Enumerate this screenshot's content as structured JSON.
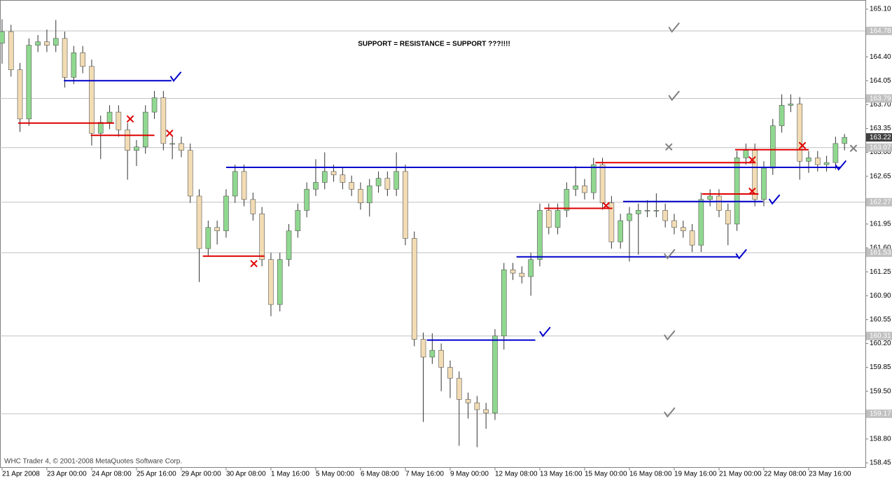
{
  "chart_data": {
    "type": "candlestick",
    "title": "SUPPORT = RESISTANCE = SUPPORT ???!!!!",
    "footer": "WHC Trader 4, © 2001-2008 MetaQuotes Software Corp.",
    "up_color": "#90d890",
    "down_color": "#f2dcb4",
    "open": [
      164.6,
      164.77,
      164.21,
      163.49,
      164.57,
      164.62,
      164.57,
      164.67,
      164.1,
      164.46,
      164.26,
      163.28,
      163.44,
      163.59,
      163.33,
      163.03,
      163.08,
      163.59,
      163.8,
      163.13,
      163.13,
      163.03,
      162.36,
      161.59,
      161.9,
      161.85,
      162.36,
      162.72,
      162.31,
      162.1,
      161.43,
      160.77,
      161.43,
      161.85,
      162.15,
      162.46,
      162.56,
      162.72,
      162.67,
      162.56,
      162.46,
      162.26,
      162.51,
      162.62,
      162.46,
      162.72,
      161.74,
      160.26,
      160.0,
      160.1,
      159.85,
      159.69,
      159.38,
      159.33,
      159.23,
      159.18,
      160.31,
      161.28,
      161.23,
      161.18,
      161.43,
      162.15,
      161.9,
      162.15,
      162.46,
      162.51,
      162.41,
      162.82,
      162.26,
      161.69,
      162.0,
      162.1,
      162.15,
      162.15,
      162.15,
      162.0,
      161.9,
      161.85,
      161.64,
      162.31,
      162.36,
      162.15,
      161.95,
      162.92,
      163.03,
      162.31,
      162.77,
      163.39,
      163.69,
      163.71,
      162.87,
      162.92,
      162.82,
      162.85,
      163.13
    ],
    "high": [
      164.95,
      164.87,
      164.31,
      164.67,
      164.72,
      164.8,
      164.94,
      164.77,
      164.56,
      164.56,
      164.36,
      163.54,
      163.69,
      163.69,
      163.43,
      163.18,
      163.69,
      163.9,
      163.9,
      163.23,
      163.23,
      163.13,
      162.46,
      162.0,
      162.0,
      162.46,
      162.82,
      162.82,
      162.41,
      162.2,
      161.53,
      161.53,
      161.95,
      162.25,
      162.56,
      162.9,
      163.0,
      162.82,
      162.77,
      162.66,
      162.56,
      162.61,
      162.72,
      162.72,
      163.0,
      162.82,
      161.84,
      160.36,
      160.35,
      160.2,
      159.95,
      159.79,
      159.48,
      159.43,
      159.33,
      160.41,
      161.38,
      161.38,
      161.33,
      161.53,
      162.25,
      162.25,
      162.25,
      162.56,
      162.8,
      162.61,
      162.92,
      162.92,
      162.36,
      162.1,
      162.2,
      162.25,
      162.3,
      162.4,
      162.25,
      162.1,
      162.0,
      161.95,
      162.41,
      162.46,
      162.46,
      162.25,
      163.02,
      163.13,
      163.13,
      162.87,
      163.49,
      163.85,
      163.85,
      163.81,
      163.02,
      163.02,
      162.95,
      163.23,
      163.27
    ],
    "low": [
      164.3,
      164.11,
      163.3,
      163.39,
      164.47,
      164.47,
      164.47,
      163.95,
      164.0,
      164.16,
      163.1,
      162.9,
      163.34,
      163.23,
      162.6,
      162.8,
      162.98,
      163.49,
      163.03,
      162.9,
      162.93,
      162.26,
      161.1,
      161.49,
      161.65,
      161.75,
      162.26,
      162.21,
      162.0,
      161.33,
      160.6,
      160.67,
      161.33,
      161.75,
      162.05,
      162.36,
      162.46,
      162.57,
      162.46,
      162.36,
      162.16,
      162.06,
      162.41,
      162.36,
      162.36,
      161.64,
      160.16,
      159.05,
      159.9,
      159.5,
      159.4,
      158.7,
      159.1,
      158.68,
      158.95,
      159.08,
      160.11,
      161.13,
      161.08,
      160.9,
      161.33,
      161.8,
      161.8,
      162.05,
      162.36,
      162.31,
      162.31,
      162.16,
      161.59,
      161.59,
      161.4,
      161.5,
      162.05,
      162.05,
      161.9,
      161.8,
      161.75,
      161.54,
      161.54,
      162.21,
      162.05,
      161.64,
      161.85,
      162.82,
      162.21,
      162.21,
      162.67,
      163.29,
      163.59,
      162.6,
      162.7,
      162.72,
      162.72,
      162.75,
      163.03
    ],
    "close": [
      164.77,
      164.21,
      163.49,
      164.57,
      164.62,
      164.57,
      164.67,
      164.1,
      164.46,
      164.26,
      163.28,
      163.44,
      163.59,
      163.33,
      163.03,
      163.08,
      163.59,
      163.8,
      163.13,
      163.13,
      163.03,
      162.36,
      161.59,
      161.9,
      161.85,
      162.36,
      162.72,
      162.31,
      162.1,
      161.43,
      160.77,
      161.43,
      161.85,
      162.15,
      162.46,
      162.56,
      162.72,
      162.67,
      162.56,
      162.46,
      162.26,
      162.51,
      162.62,
      162.46,
      162.72,
      161.74,
      160.26,
      160.0,
      160.1,
      159.85,
      159.69,
      159.38,
      159.33,
      159.23,
      159.18,
      160.31,
      161.28,
      161.23,
      161.18,
      161.43,
      162.15,
      161.9,
      162.15,
      162.46,
      162.51,
      162.41,
      162.82,
      162.26,
      161.69,
      162.0,
      162.1,
      162.15,
      162.15,
      162.15,
      162.0,
      161.9,
      161.85,
      161.64,
      162.31,
      162.36,
      162.15,
      161.95,
      162.92,
      163.03,
      162.31,
      162.77,
      163.39,
      163.69,
      163.71,
      162.87,
      162.92,
      162.82,
      162.85,
      163.13,
      163.22
    ],
    "xlim": [
      -0.23,
      96.33
    ],
    "ylim": [
      158.378,
      165.233
    ],
    "xticks": [
      {
        "value": 0,
        "label": "21 Apr 2008"
      },
      {
        "value": 5,
        "label": "23 Apr 00:00"
      },
      {
        "value": 10,
        "label": "24 Apr 08:00"
      },
      {
        "value": 15,
        "label": "25 Apr 16:00"
      },
      {
        "value": 20,
        "label": "29 Apr 00:00"
      },
      {
        "value": 25,
        "label": "30 Apr 08:00"
      },
      {
        "value": 30,
        "label": "1 May 16:00"
      },
      {
        "value": 35,
        "label": "5 May 00:00"
      },
      {
        "value": 40,
        "label": "6 May 08:00"
      },
      {
        "value": 45,
        "label": "7 May 16:00"
      },
      {
        "value": 50,
        "label": "9 May 00:00"
      },
      {
        "value": 55,
        "label": "12 May 08:00"
      },
      {
        "value": 60,
        "label": "13 May 16:00"
      },
      {
        "value": 65,
        "label": "15 May 00:00"
      },
      {
        "value": 70,
        "label": "16 May 08:00"
      },
      {
        "value": 75,
        "label": "19 May 16:00"
      },
      {
        "value": 80,
        "label": "21 May 00:00"
      },
      {
        "value": 85,
        "label": "22 May 08:00"
      },
      {
        "value": 90,
        "label": "23 May 16:00"
      }
    ],
    "yticks": [
      {
        "value": 165.1,
        "label": "165.10"
      },
      {
        "value": 164.4,
        "label": "164.40"
      },
      {
        "value": 164.05,
        "label": "164.05"
      },
      {
        "value": 163.7,
        "label": "163.70"
      },
      163.35,
      {
        "value": 163.0,
        "label": "163.00"
      },
      162.65,
      161.95,
      {
        "value": 161.6,
        "label": "161.60"
      },
      161.25,
      {
        "value": 160.9,
        "label": "160.90"
      },
      160.55,
      {
        "value": 160.2,
        "label": "160.20"
      },
      159.85,
      {
        "value": 159.5,
        "label": "159.50"
      },
      {
        "value": 158.8,
        "label": "158.80"
      },
      158.45
    ],
    "hlines": [
      164.78,
      163.79,
      163.07,
      162.27,
      161.53,
      160.31,
      159.17
    ],
    "last_price": 163.22,
    "levels": [
      {
        "price": 164.05,
        "start": 6.9,
        "end": 18.9,
        "color": "#0000cc"
      },
      {
        "price": 163.43,
        "start": 1.8,
        "end": 12.5,
        "color": "#e00000"
      },
      {
        "price": 163.25,
        "start": 9.9,
        "end": 17,
        "color": "#e00000"
      },
      {
        "price": 162.78,
        "start": 25,
        "end": 93.5,
        "color": "#0000cc"
      },
      {
        "price": 161.48,
        "start": 22.4,
        "end": 29.3,
        "color": "#e00000"
      },
      {
        "price": 160.25,
        "start": 47.4,
        "end": 59.5,
        "color": "#0000cc"
      },
      {
        "price": 161.47,
        "start": 57.4,
        "end": 82.2,
        "color": "#0000cc"
      },
      {
        "price": 162.18,
        "start": 60.5,
        "end": 68.1,
        "color": "#e00000"
      },
      {
        "price": 162.85,
        "start": 66.2,
        "end": 84,
        "color": "#e00000"
      },
      {
        "price": 162.28,
        "start": 69.3,
        "end": 84.9,
        "color": "#0000cc"
      },
      {
        "price": 162.39,
        "start": 78.1,
        "end": 84.4,
        "color": "#e00000"
      },
      {
        "price": 163.04,
        "start": 81.8,
        "end": 90,
        "color": "#e00000"
      }
    ],
    "markers": [
      {
        "kind": "check",
        "x": 19.3,
        "price": 164.1,
        "color": "#0000cc"
      },
      {
        "kind": "check",
        "x": 60.5,
        "price": 160.36,
        "color": "#0000cc"
      },
      {
        "kind": "check",
        "x": 82.4,
        "price": 161.5,
        "color": "#0000cc"
      },
      {
        "kind": "check",
        "x": 86.1,
        "price": 162.3,
        "color": "#0000cc"
      },
      {
        "kind": "check",
        "x": 93.5,
        "price": 162.8,
        "color": "#0000cc"
      },
      {
        "kind": "cross",
        "x": 14.3,
        "price": 163.49,
        "color": "#e00000"
      },
      {
        "kind": "cross",
        "x": 18.7,
        "price": 163.28,
        "color": "#e00000"
      },
      {
        "kind": "cross",
        "x": 28.1,
        "price": 161.37,
        "color": "#e00000"
      },
      {
        "kind": "cross",
        "x": 67.4,
        "price": 162.22,
        "color": "#e00000"
      },
      {
        "kind": "cross",
        "x": 83.7,
        "price": 162.89,
        "color": "#e00000"
      },
      {
        "kind": "cross",
        "x": 83.7,
        "price": 162.43,
        "color": "#e00000"
      },
      {
        "kind": "cross",
        "x": 89.3,
        "price": 163.1,
        "color": "#e00000"
      },
      {
        "kind": "check",
        "x": 74.9,
        "price": 164.82,
        "color": "#808080"
      },
      {
        "kind": "check",
        "x": 74.9,
        "price": 163.82,
        "color": "#808080"
      },
      {
        "kind": "check",
        "x": 74.4,
        "price": 161.5,
        "color": "#808080"
      },
      {
        "kind": "check",
        "x": 74.4,
        "price": 160.31,
        "color": "#808080"
      },
      {
        "kind": "check",
        "x": 74.4,
        "price": 159.18,
        "color": "#808080"
      },
      {
        "kind": "cross",
        "x": 74.4,
        "price": 163.08,
        "color": "#808080"
      },
      {
        "kind": "cross",
        "x": 95,
        "price": 163.06,
        "color": "#808080"
      }
    ]
  }
}
